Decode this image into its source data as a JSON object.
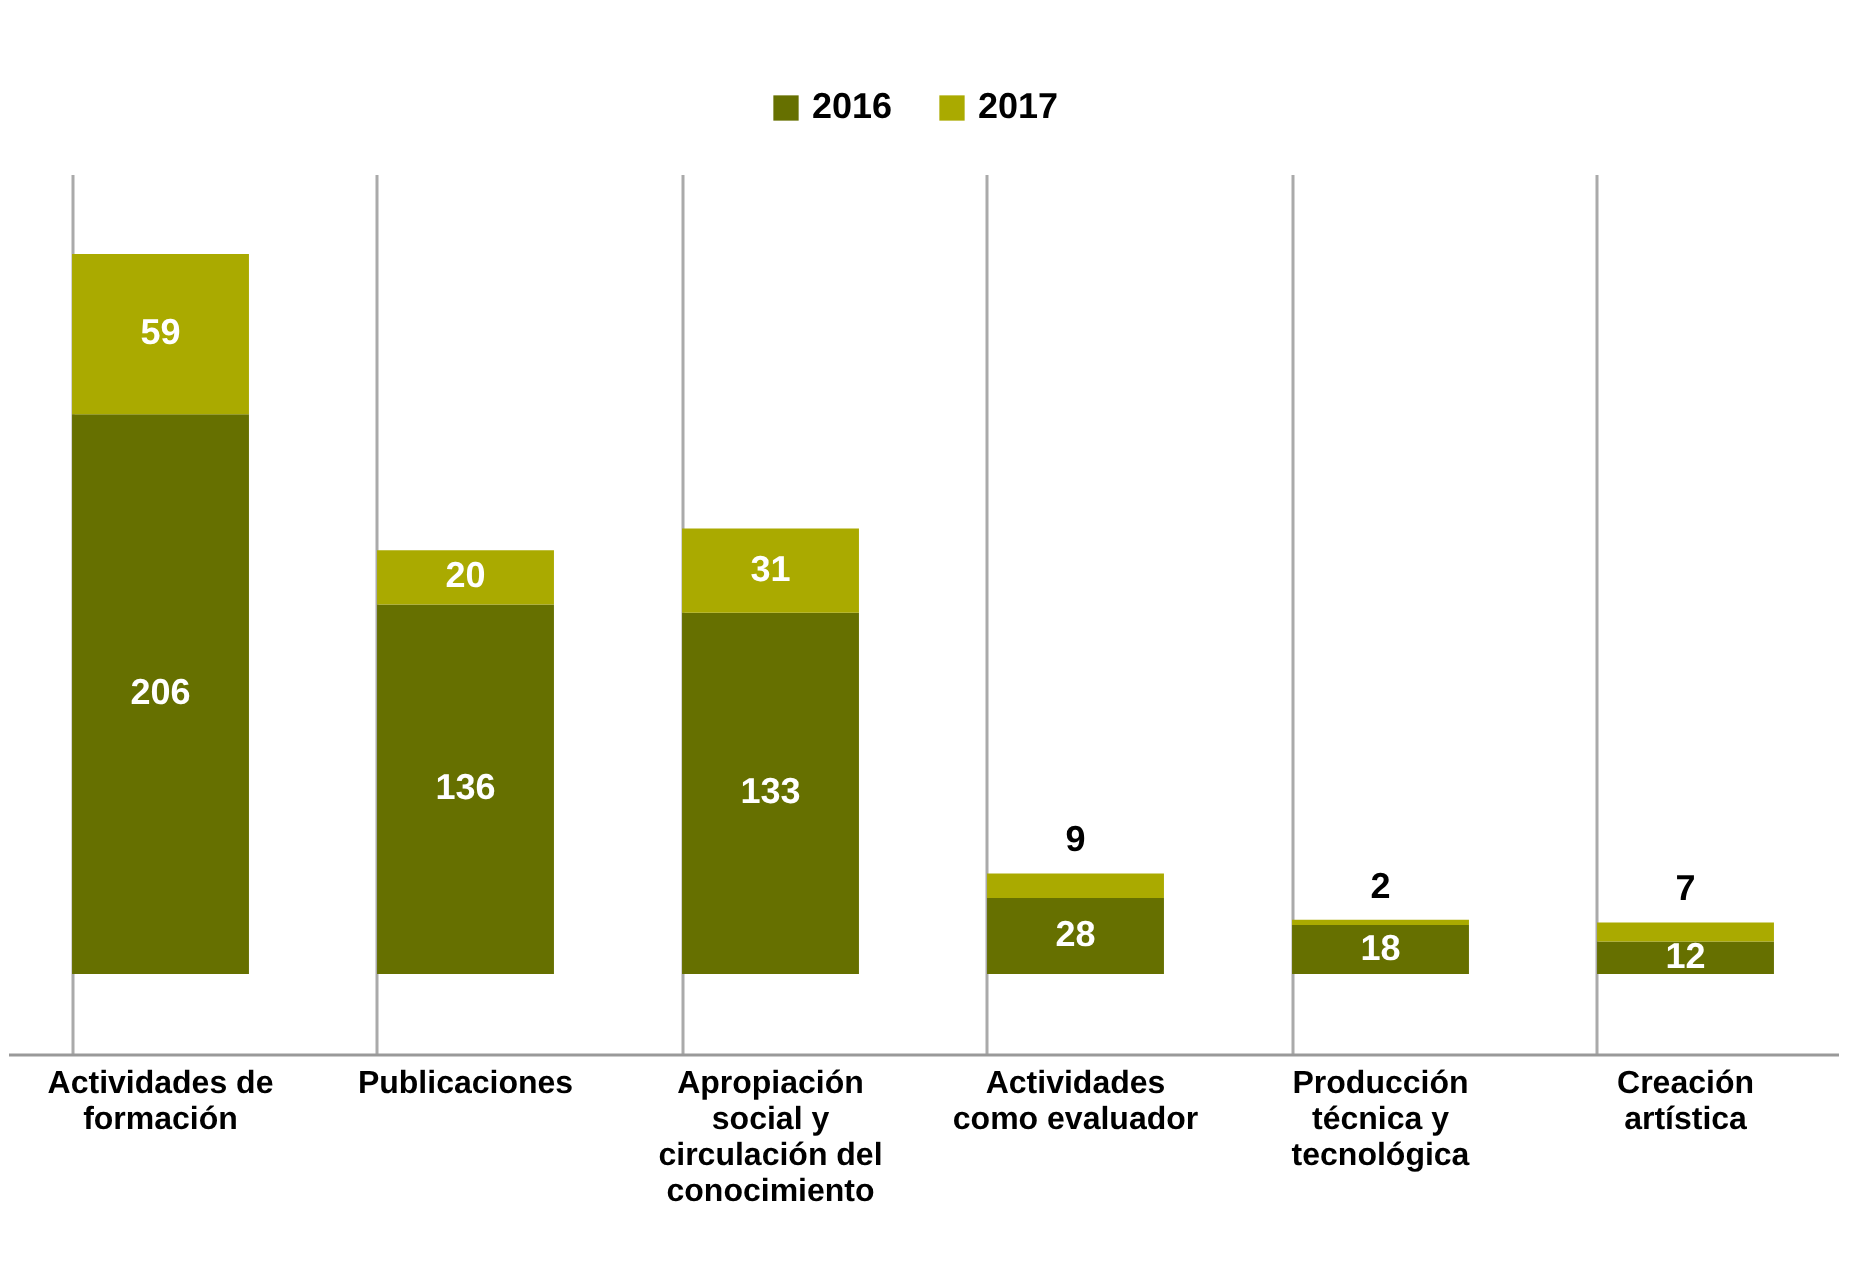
{
  "chart_data": {
    "type": "bar",
    "stacked": true,
    "data_labels": true,
    "legend": "top",
    "grid": "x",
    "categories": [
      "Actividades de formación",
      "Publicaciones",
      "Apropiación social y circulación del conocimiento",
      "Actividades como evaluador",
      "Producción técnica y tecnológica",
      "Creación artística"
    ],
    "series": [
      {
        "name": "2016",
        "color": "#667000",
        "values": [
          206,
          136,
          133,
          28,
          18,
          12
        ]
      },
      {
        "name": "2017",
        "color": "#aaaa00",
        "values": [
          59,
          20,
          31,
          9,
          2,
          7
        ]
      }
    ]
  }
}
